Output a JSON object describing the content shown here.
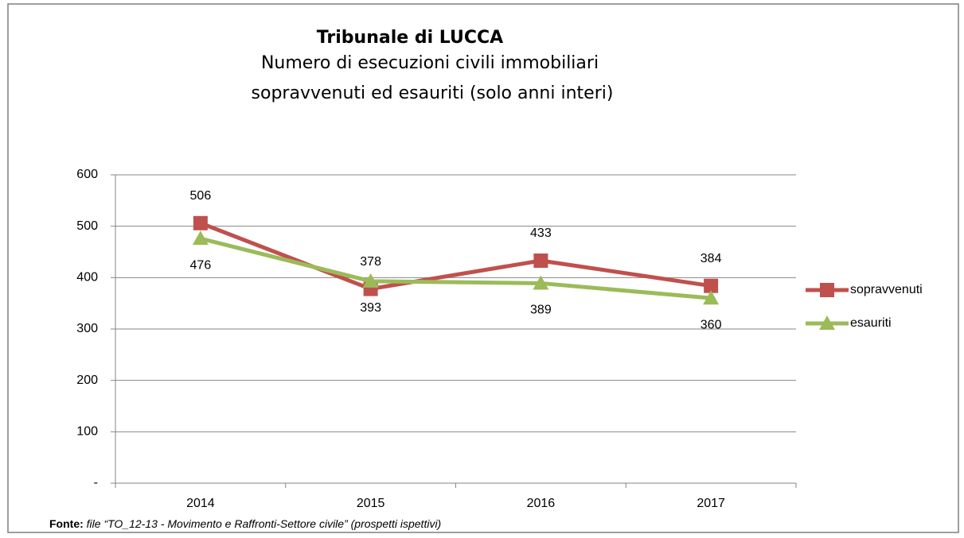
{
  "chart_data": {
    "type": "line",
    "title": "Tribunale di LUCCA",
    "subtitle": [
      "Numero di esecuzioni civili immobiliari",
      "sopravvenuti ed esauriti (solo anni interi)"
    ],
    "categories": [
      "2014",
      "2015",
      "2016",
      "2017"
    ],
    "series": [
      {
        "name": "sopravvenuti",
        "color": "#c0504d",
        "marker": "square",
        "values": [
          506,
          378,
          433,
          384
        ]
      },
      {
        "name": "esauriti",
        "color": "#9bbb59",
        "marker": "triangle",
        "values": [
          476,
          393,
          389,
          360
        ]
      }
    ],
    "ylim": [
      0,
      600
    ],
    "yticks": [
      {
        "value": 0,
        "label": "-"
      },
      100,
      200,
      300,
      400,
      500,
      600
    ],
    "grid": true,
    "legend": "right",
    "source_label": "Fonte:",
    "source_text": "file “TO_12-13 - Movimento e Raffronti-Settore civile” (prospetti ispettivi)"
  }
}
